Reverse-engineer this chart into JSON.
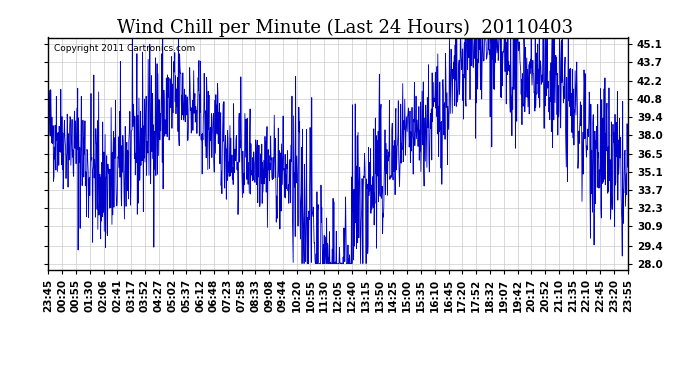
{
  "title": "Wind Chill per Minute (Last 24 Hours)  20110403",
  "copyright_text": "Copyright 2011 Cartronics.com",
  "yticks": [
    28.0,
    29.4,
    30.9,
    32.3,
    33.7,
    35.1,
    36.5,
    38.0,
    39.4,
    40.8,
    42.2,
    43.7,
    45.1
  ],
  "ylim": [
    27.5,
    45.6
  ],
  "line_color": "#0000cc",
  "bg_color": "#ffffff",
  "plot_bg_color": "#ffffff",
  "grid_color": "#cccccc",
  "title_fontsize": 13,
  "tick_fontsize": 7.5,
  "xtick_labels": [
    "23:45",
    "00:20",
    "00:55",
    "01:30",
    "02:06",
    "02:41",
    "03:17",
    "03:52",
    "04:27",
    "05:02",
    "05:37",
    "06:12",
    "06:48",
    "07:23",
    "07:58",
    "08:33",
    "09:08",
    "09:44",
    "10:20",
    "10:55",
    "11:30",
    "12:05",
    "12:40",
    "13:15",
    "13:50",
    "14:25",
    "15:00",
    "15:35",
    "16:10",
    "16:45",
    "17:20",
    "17:52",
    "18:32",
    "19:07",
    "19:42",
    "20:17",
    "20:52",
    "21:10",
    "21:35",
    "22:10",
    "22:45",
    "23:20",
    "23:55"
  ],
  "num_points": 1440
}
